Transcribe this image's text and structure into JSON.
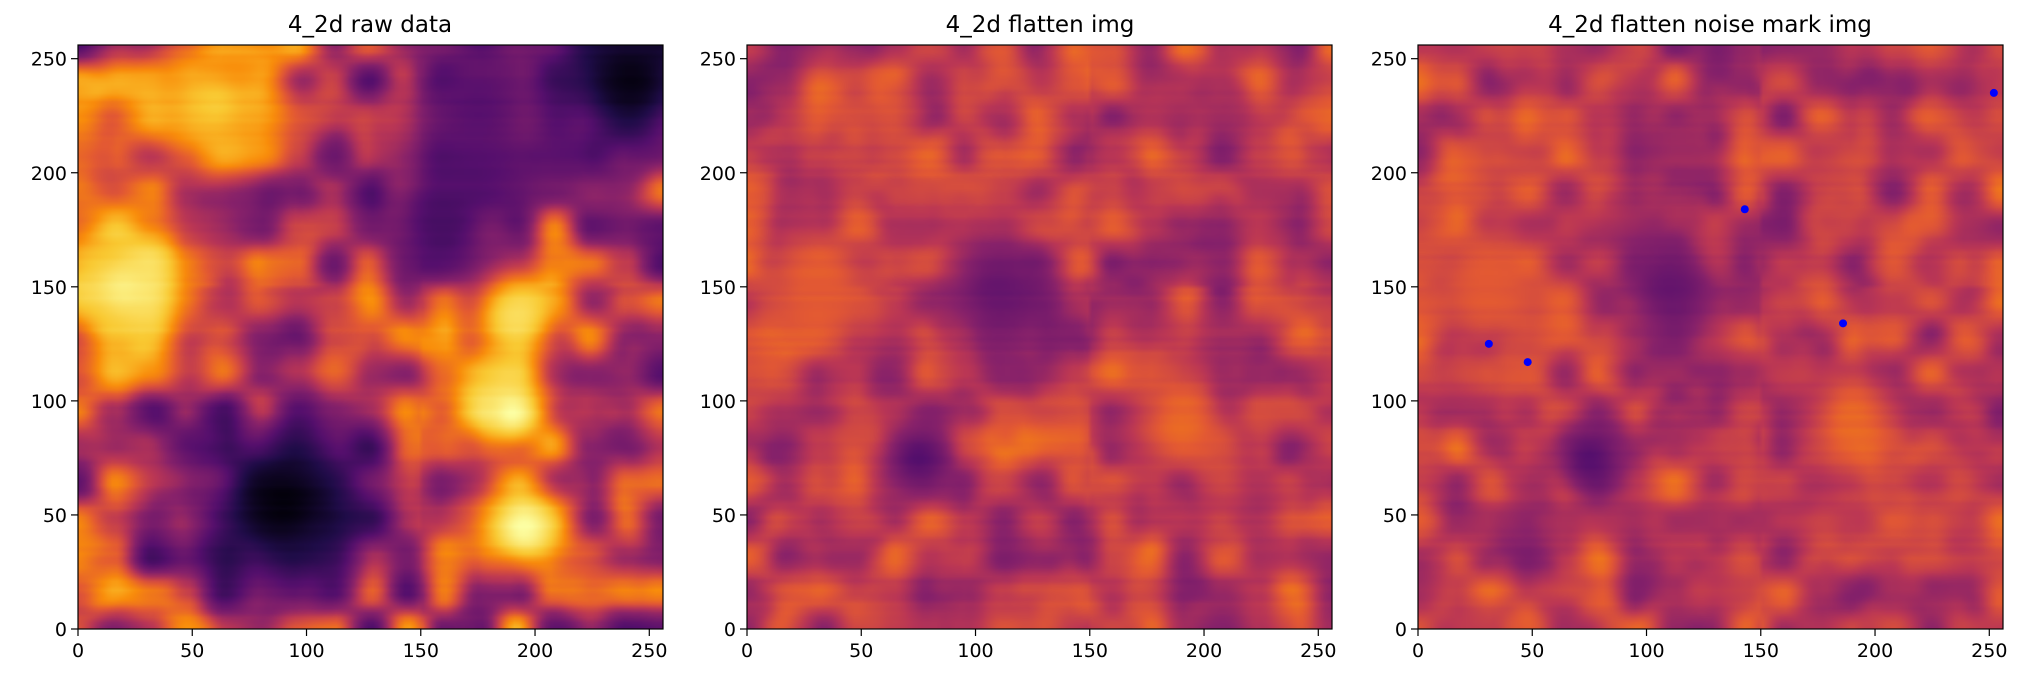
{
  "chart_data": [
    {
      "type": "heatmap",
      "title": "4_2d  raw data",
      "xlim": [
        0,
        256
      ],
      "ylim": [
        0,
        256
      ],
      "x_ticks": [
        0,
        50,
        100,
        150,
        200,
        250
      ],
      "y_ticks": [
        0,
        50,
        100,
        150,
        200,
        250
      ],
      "x_tick_labels": [
        "0",
        "50",
        "100",
        "150",
        "200",
        "250"
      ],
      "y_tick_labels": [
        "0",
        "50",
        "100",
        "150",
        "200",
        "250"
      ],
      "colormap": "inferno",
      "grid": false,
      "features": [
        {
          "x": 20,
          "y": 150,
          "level": 0.95,
          "r": 35
        },
        {
          "x": 60,
          "y": 230,
          "level": 0.85,
          "r": 35
        },
        {
          "x": 190,
          "y": 140,
          "level": 0.95,
          "r": 25
        },
        {
          "x": 190,
          "y": 95,
          "level": 1.0,
          "r": 18
        },
        {
          "x": 195,
          "y": 45,
          "level": 1.0,
          "r": 22
        },
        {
          "x": 90,
          "y": 55,
          "level": 0.02,
          "r": 40
        },
        {
          "x": 240,
          "y": 240,
          "level": 0.02,
          "r": 35
        },
        {
          "x": 160,
          "y": 180,
          "level": 0.25,
          "r": 30
        },
        {
          "x": 175,
          "y": 230,
          "level": 0.3,
          "r": 40
        }
      ]
    },
    {
      "type": "heatmap",
      "title": "4_2d  flatten img",
      "xlim": [
        0,
        256
      ],
      "ylim": [
        0,
        256
      ],
      "x_ticks": [
        0,
        50,
        100,
        150,
        200,
        250
      ],
      "y_ticks": [
        0,
        50,
        100,
        150,
        200,
        250
      ],
      "x_tick_labels": [
        "0",
        "50",
        "100",
        "150",
        "200",
        "250"
      ],
      "y_tick_labels": [
        "0",
        "50",
        "100",
        "150",
        "200",
        "250"
      ],
      "colormap": "inferno",
      "grid": false,
      "features": [
        {
          "x": 75,
          "y": 75,
          "level": 0.3,
          "r": 15
        },
        {
          "x": 190,
          "y": 90,
          "level": 0.68,
          "r": 20
        },
        {
          "x": 110,
          "y": 150,
          "level": 0.35,
          "r": 25
        },
        {
          "x": 30,
          "y": 150,
          "level": 0.65,
          "r": 30
        }
      ]
    },
    {
      "type": "heatmap",
      "title": "4_2d flatten noise mark img",
      "xlim": [
        0,
        256
      ],
      "ylim": [
        0,
        256
      ],
      "x_ticks": [
        0,
        50,
        100,
        150,
        200,
        250
      ],
      "y_ticks": [
        0,
        50,
        100,
        150,
        200,
        250
      ],
      "x_tick_labels": [
        "0",
        "50",
        "100",
        "150",
        "200",
        "250"
      ],
      "y_tick_labels": [
        "0",
        "50",
        "100",
        "150",
        "200",
        "250"
      ],
      "colormap": "inferno",
      "grid": false,
      "features": [
        {
          "x": 75,
          "y": 75,
          "level": 0.3,
          "r": 15
        },
        {
          "x": 190,
          "y": 90,
          "level": 0.68,
          "r": 20
        },
        {
          "x": 110,
          "y": 150,
          "level": 0.35,
          "r": 25
        },
        {
          "x": 30,
          "y": 150,
          "level": 0.65,
          "r": 30
        }
      ],
      "noise_marks": {
        "color": "#0000ff",
        "points": [
          {
            "x": 31,
            "y": 125
          },
          {
            "x": 48,
            "y": 117
          },
          {
            "x": 143,
            "y": 184
          },
          {
            "x": 186,
            "y": 134
          },
          {
            "x": 252,
            "y": 235
          }
        ]
      }
    }
  ]
}
